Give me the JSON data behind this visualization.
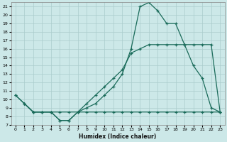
{
  "xlabel": "Humidex (Indice chaleur)",
  "bg_color": "#cce8e8",
  "grid_color": "#aacccc",
  "line_color": "#1a6b5a",
  "xlim": [
    -0.5,
    23.5
  ],
  "ylim": [
    7,
    21.5
  ],
  "xticks": [
    0,
    1,
    2,
    3,
    4,
    5,
    6,
    7,
    8,
    9,
    10,
    11,
    12,
    13,
    14,
    15,
    16,
    17,
    18,
    19,
    20,
    21,
    22,
    23
  ],
  "yticks": [
    7,
    8,
    9,
    10,
    11,
    12,
    13,
    14,
    15,
    16,
    17,
    18,
    19,
    20,
    21
  ],
  "line1_x": [
    0,
    1,
    2,
    3,
    4,
    5,
    6,
    7,
    8,
    9,
    10,
    11,
    12,
    13,
    14,
    15,
    16,
    17,
    18,
    19,
    20,
    21,
    22,
    23
  ],
  "line1_y": [
    10.5,
    9.5,
    8.5,
    8.5,
    8.5,
    7.5,
    7.5,
    8.5,
    9.0,
    9.5,
    10.5,
    11.5,
    13.0,
    16.0,
    21.0,
    21.5,
    20.5,
    19.0,
    19.0,
    16.5,
    14.0,
    12.5,
    9.0,
    8.5
  ],
  "line2_x": [
    0,
    1,
    2,
    3,
    4,
    5,
    6,
    7,
    8,
    9,
    10,
    11,
    12,
    13,
    14,
    15,
    16,
    17,
    18,
    19,
    20,
    21,
    22,
    23
  ],
  "line2_y": [
    10.5,
    9.5,
    8.5,
    8.5,
    8.5,
    7.5,
    7.5,
    8.5,
    8.5,
    8.5,
    8.5,
    8.5,
    8.5,
    8.5,
    8.5,
    8.5,
    8.5,
    8.5,
    8.5,
    8.5,
    8.5,
    8.5,
    8.5,
    8.5
  ],
  "line3_x": [
    1,
    2,
    3,
    4,
    5,
    6,
    7,
    8,
    9,
    10,
    11,
    12,
    13,
    14,
    15,
    16,
    17,
    18,
    19,
    20,
    21,
    22,
    23
  ],
  "line3_y": [
    9.5,
    8.5,
    8.5,
    8.5,
    8.5,
    8.5,
    8.5,
    9.5,
    10.5,
    11.5,
    12.5,
    13.5,
    15.5,
    16.0,
    16.5,
    16.5,
    16.5,
    16.5,
    16.5,
    16.5,
    16.5,
    16.5,
    8.5
  ]
}
